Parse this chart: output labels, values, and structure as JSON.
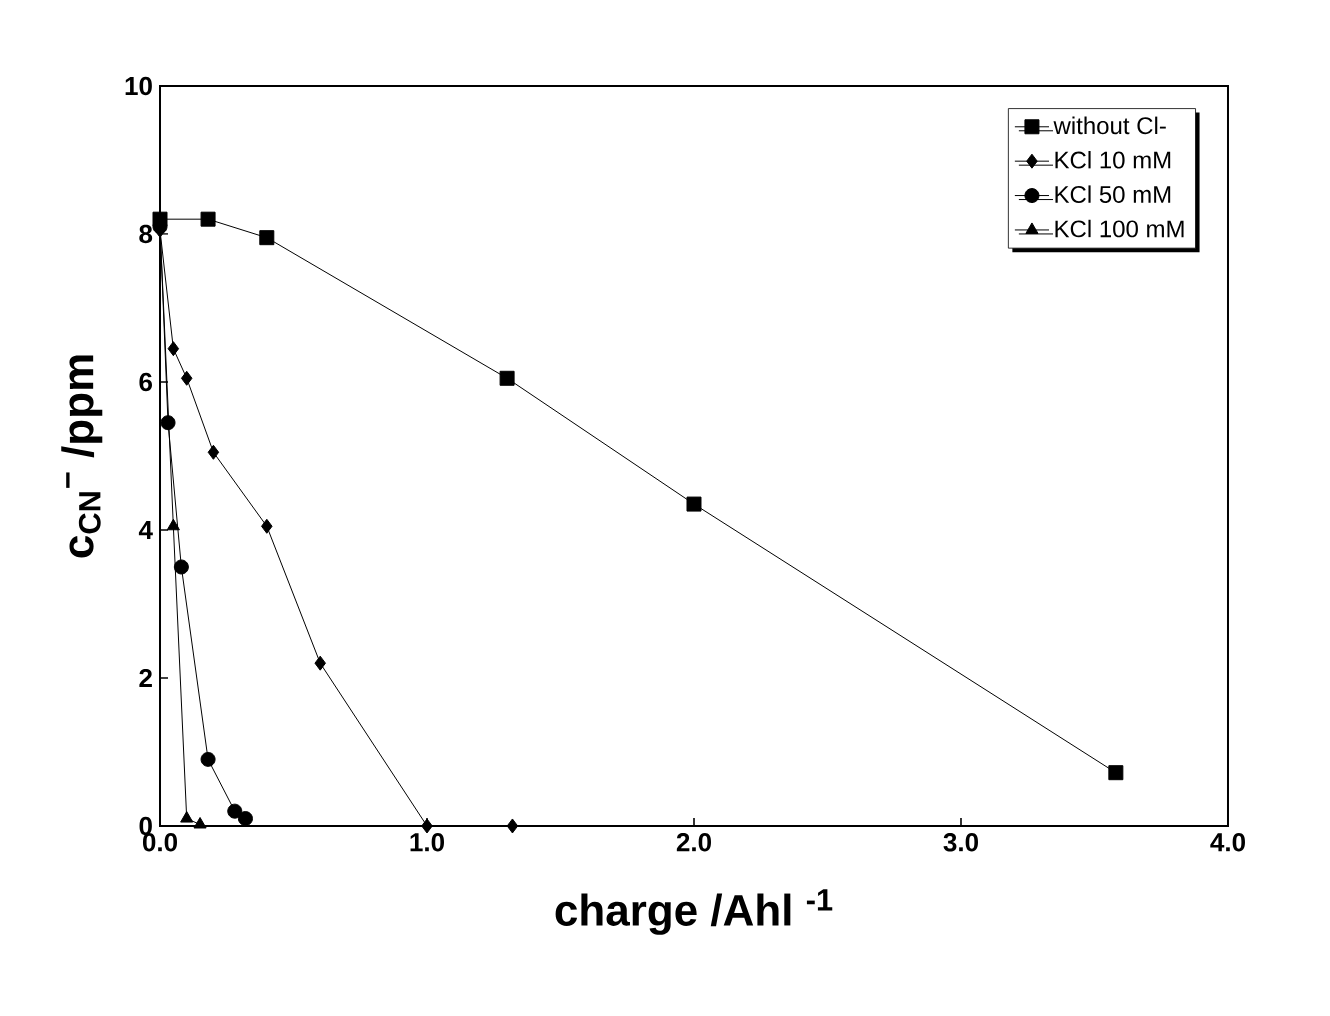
{
  "chart_data": {
    "type": "line",
    "xlabel": "charge /Ahl $^{-1}$",
    "ylabel": "c$_{CN}$$^{−}$ /ppm",
    "xlim": [
      0,
      4
    ],
    "ylim": [
      0,
      10
    ],
    "xticks": [
      {
        "value": 0,
        "label": "0.0"
      },
      {
        "value": 1,
        "label": "1.0"
      },
      {
        "value": 2,
        "label": "2.0"
      },
      {
        "value": 3,
        "label": "3.0"
      },
      {
        "value": 4,
        "label": "4.0"
      }
    ],
    "yticks": [
      0,
      2,
      4,
      6,
      8,
      10
    ],
    "legend": "top right",
    "grid": false,
    "line_style": "solid",
    "series": [
      {
        "name": "without Cl-",
        "color": "#000000",
        "marker": "square",
        "x": [
          0,
          0.18,
          0.4,
          1.3,
          2.0,
          3.58
        ],
        "values": [
          8.2,
          8.2,
          7.95,
          6.05,
          4.35,
          0.72
        ]
      },
      {
        "name": "KCl 10 mM",
        "color": "#000000",
        "marker": "diamond",
        "x": [
          0,
          0.05,
          0.1,
          0.2,
          0.4,
          0.6,
          1.0,
          1.32
        ],
        "values": [
          8.05,
          6.45,
          6.05,
          5.05,
          4.05,
          2.2,
          0,
          0
        ]
      },
      {
        "name": "KCl 50 mM",
        "color": "#000000",
        "marker": "circle",
        "x": [
          0,
          0.03,
          0.08,
          0.18,
          0.28,
          0.32
        ],
        "values": [
          8.1,
          5.45,
          3.5,
          0.9,
          0.2,
          0.1
        ]
      },
      {
        "name": "KCl 100 mM",
        "color": "#000000",
        "marker": "triangle",
        "x": [
          0,
          0.05,
          0.1,
          0.15
        ],
        "values": [
          8.1,
          4.05,
          0.1,
          0.02
        ]
      }
    ]
  }
}
